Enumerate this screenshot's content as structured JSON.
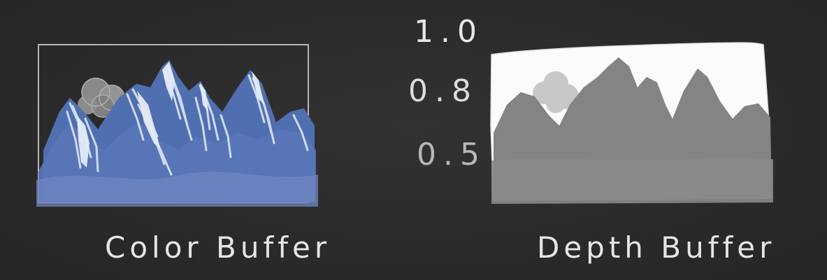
{
  "captions": {
    "color_buffer": "Color Buffer",
    "depth_buffer": "Depth Buffer"
  },
  "depth_scale": [
    "1.0",
    "0.8",
    "0.5"
  ],
  "colors": {
    "background": "#2b2b2b",
    "mountain_blue": "#4f6fb0",
    "snow": "#dde6f5",
    "depth_sky": "#fbfbfb",
    "depth_mountains": "#848484",
    "depth_cloud": "#c8c8c8",
    "chalk": "#e6e6e6"
  }
}
